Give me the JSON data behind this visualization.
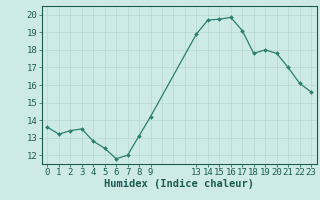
{
  "xlabel": "Humidex (Indice chaleur)",
  "x": [
    0,
    1,
    2,
    3,
    4,
    5,
    6,
    7,
    8,
    9,
    13,
    14,
    15,
    16,
    17,
    18,
    19,
    20,
    21,
    22,
    23
  ],
  "y": [
    13.6,
    13.2,
    13.4,
    13.5,
    12.8,
    12.4,
    11.8,
    12.0,
    13.1,
    14.2,
    18.9,
    19.7,
    19.75,
    19.85,
    19.1,
    17.8,
    18.0,
    17.8,
    17.0,
    16.1,
    15.6
  ],
  "line_color": "#2a7f6f",
  "marker": "D",
  "marker_size": 2.0,
  "bg_color": "#ceeae7",
  "grid_color": "#b8d8d4",
  "axis_color": "#1a5c50",
  "tick_color": "#1a5c50",
  "ylim": [
    11.5,
    20.5
  ],
  "yticks": [
    12,
    13,
    14,
    15,
    16,
    17,
    18,
    19,
    20
  ],
  "xticks": [
    0,
    1,
    2,
    3,
    4,
    5,
    6,
    7,
    8,
    9,
    13,
    14,
    15,
    16,
    17,
    18,
    19,
    20,
    21,
    22,
    23
  ],
  "xlim": [
    -0.5,
    23.5
  ],
  "font_size": 6.5,
  "xlabel_fontsize": 7.5
}
